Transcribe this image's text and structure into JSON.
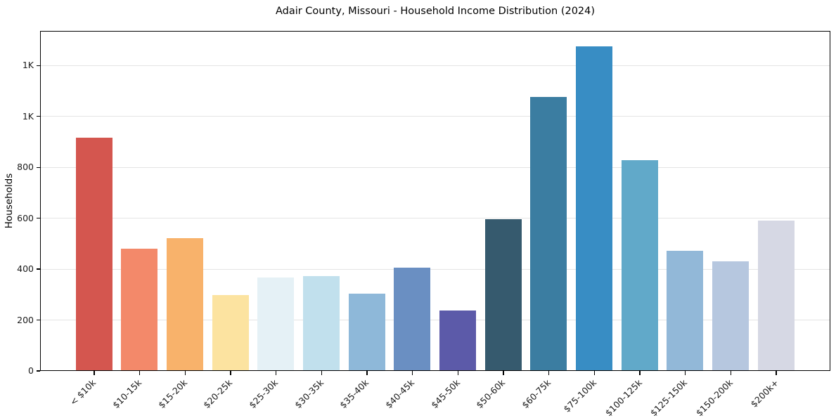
{
  "chart_data": {
    "type": "bar",
    "title": "Adair County, Missouri - Household Income Distribution (2024)",
    "xlabel": "",
    "ylabel": "Households",
    "categories": [
      "< $10k",
      "$10-15k",
      "$15-20k",
      "$20-25k",
      "$25-30k",
      "$30-35k",
      "$35-40k",
      "$40-45k",
      "$45-50k",
      "$50-60k",
      "$60-75k",
      "$75-100k",
      "$100-125k",
      "$125-150k",
      "$150-200k",
      "$200k+"
    ],
    "values": [
      914,
      478,
      519,
      296,
      364,
      370,
      301,
      404,
      235,
      594,
      1073,
      1272,
      825,
      468,
      429,
      589
    ],
    "bar_colors": [
      "#d4564f",
      "#f3896a",
      "#f8b26b",
      "#fce3a0",
      "#e5f1f6",
      "#c1e0ed",
      "#8eb8d9",
      "#6a8fc2",
      "#5c5aa9",
      "#365a6e",
      "#3b7da1",
      "#388dc4",
      "#61a9c9",
      "#92b8d8",
      "#b6c7df",
      "#d6d8e4"
    ],
    "ylim": [
      0,
      1336
    ],
    "yticks": [
      {
        "value": 0,
        "label": "0"
      },
      {
        "value": 200,
        "label": "200"
      },
      {
        "value": 400,
        "label": "400"
      },
      {
        "value": 600,
        "label": "600"
      },
      {
        "value": 800,
        "label": "800"
      },
      {
        "value": 1000,
        "label": "1K"
      },
      {
        "value": 1200,
        "label": "1K"
      }
    ],
    "grid": "horizontal",
    "legend_position": "none",
    "colors": {
      "background": "#ffffff",
      "axis": "#000000",
      "gridline": "#e4e4e4",
      "text": "#1a1a1a"
    }
  }
}
